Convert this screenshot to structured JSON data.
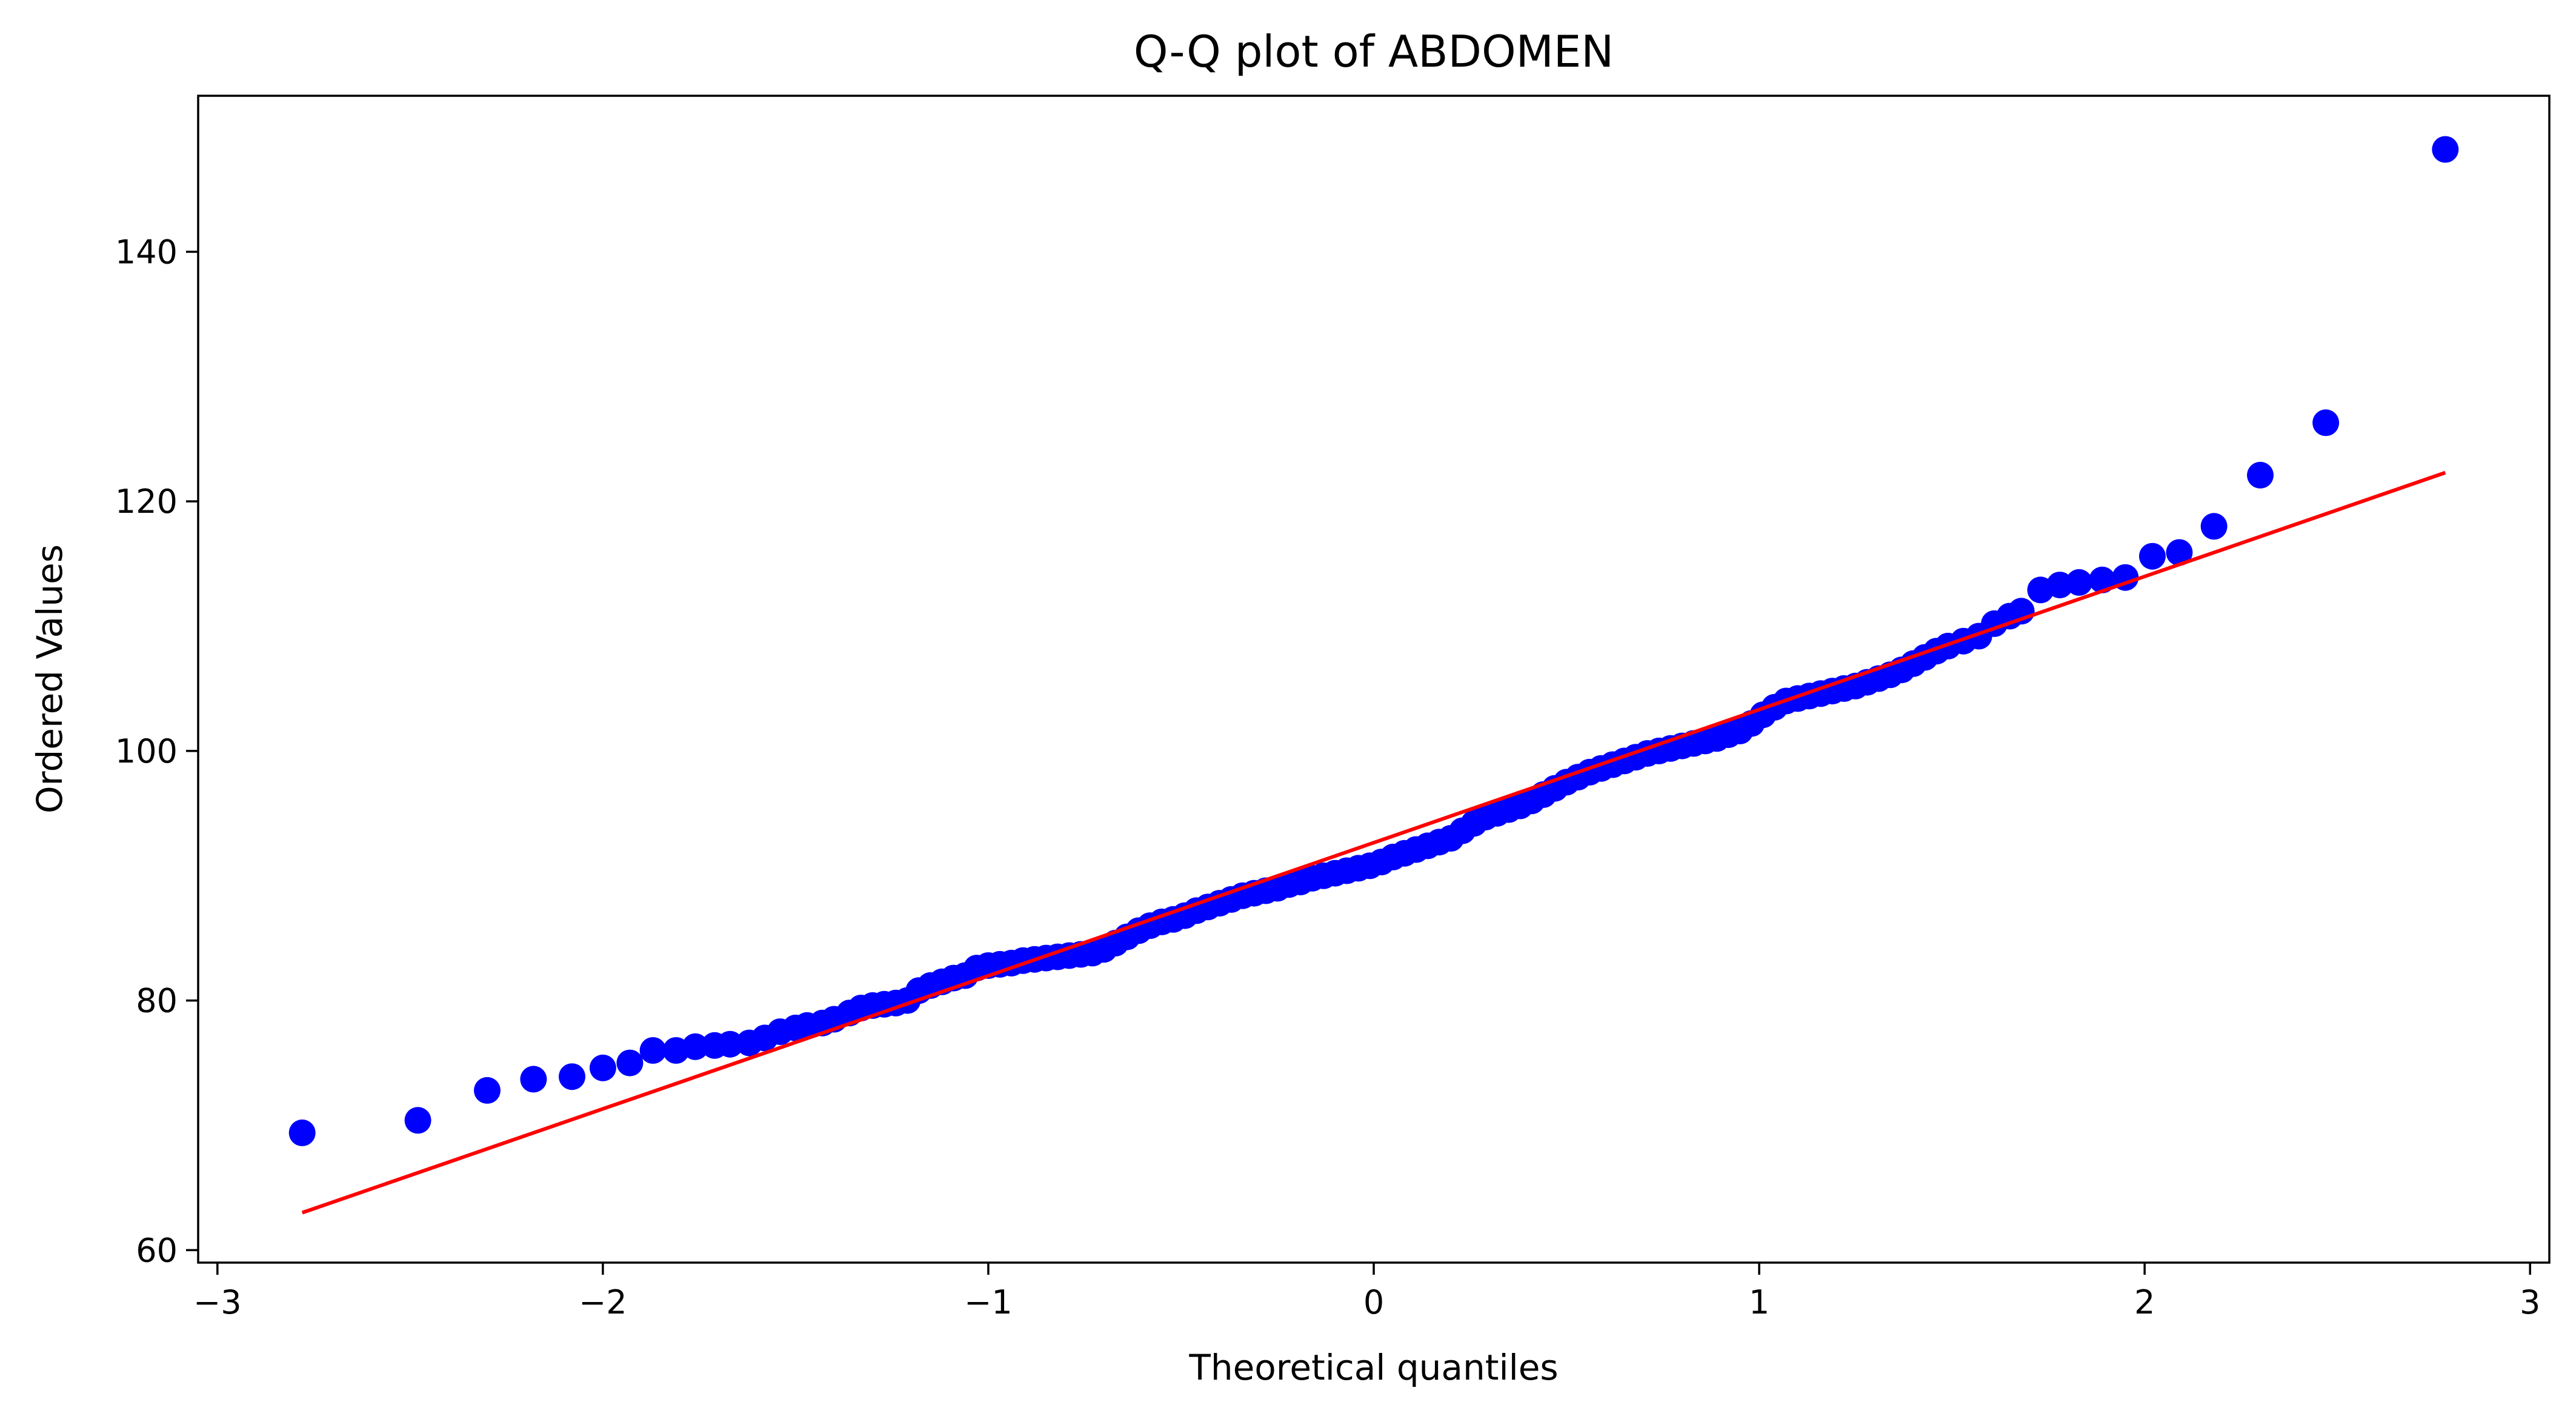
{
  "chart_data": {
    "type": "scatter",
    "title": "Q-Q plot of ABDOMEN",
    "xlabel": "Theoretical quantiles",
    "ylabel": "Ordered Values",
    "xlim": [
      -3.05,
      3.05
    ],
    "ylim": [
      59,
      152.5
    ],
    "xticks": [
      -3,
      -2,
      -1,
      0,
      1,
      2,
      3
    ],
    "xtick_labels": [
      "−3",
      "−2",
      "−1",
      "0",
      "1",
      "2",
      "3"
    ],
    "yticks": [
      60,
      80,
      100,
      120,
      140
    ],
    "ytick_labels": [
      "60",
      "80",
      "100",
      "120",
      "140"
    ],
    "grid": false,
    "marker_color": "#0000ff",
    "fit_line_color": "#ff0000",
    "points": [
      [
        -2.78,
        69.4
      ],
      [
        -2.48,
        70.4
      ],
      [
        -2.3,
        72.8
      ],
      [
        -2.18,
        73.7
      ],
      [
        -2.08,
        73.9
      ],
      [
        -2.0,
        74.6
      ],
      [
        -1.93,
        75.0
      ],
      [
        -1.87,
        76.0
      ],
      [
        -1.81,
        76.0
      ],
      [
        -1.76,
        76.3
      ],
      [
        -1.71,
        76.4
      ],
      [
        -1.67,
        76.5
      ],
      [
        -1.62,
        76.6
      ],
      [
        -1.58,
        77.0
      ],
      [
        -1.54,
        77.5
      ],
      [
        -1.5,
        77.8
      ],
      [
        -1.47,
        78.0
      ],
      [
        -1.43,
        78.2
      ],
      [
        -1.4,
        78.5
      ],
      [
        -1.36,
        79.0
      ],
      [
        -1.33,
        79.4
      ],
      [
        -1.3,
        79.6
      ],
      [
        -1.27,
        79.7
      ],
      [
        -1.24,
        79.8
      ],
      [
        -1.21,
        80.0
      ],
      [
        -1.18,
        80.8
      ],
      [
        -1.15,
        81.2
      ],
      [
        -1.12,
        81.5
      ],
      [
        -1.09,
        81.8
      ],
      [
        -1.06,
        82.0
      ],
      [
        -1.03,
        82.6
      ],
      [
        -1.0,
        82.8
      ],
      [
        -0.97,
        82.9
      ],
      [
        -0.94,
        83.0
      ],
      [
        -0.91,
        83.2
      ],
      [
        -0.88,
        83.3
      ],
      [
        -0.85,
        83.4
      ],
      [
        -0.82,
        83.5
      ],
      [
        -0.79,
        83.6
      ],
      [
        -0.76,
        83.7
      ],
      [
        -0.73,
        83.8
      ],
      [
        -0.7,
        84.1
      ],
      [
        -0.67,
        84.6
      ],
      [
        -0.64,
        85.1
      ],
      [
        -0.61,
        85.6
      ],
      [
        -0.58,
        86.0
      ],
      [
        -0.55,
        86.3
      ],
      [
        -0.52,
        86.5
      ],
      [
        -0.49,
        86.8
      ],
      [
        -0.46,
        87.2
      ],
      [
        -0.43,
        87.5
      ],
      [
        -0.4,
        87.8
      ],
      [
        -0.37,
        88.1
      ],
      [
        -0.34,
        88.4
      ],
      [
        -0.31,
        88.6
      ],
      [
        -0.28,
        88.8
      ],
      [
        -0.25,
        89.0
      ],
      [
        -0.22,
        89.3
      ],
      [
        -0.19,
        89.5
      ],
      [
        -0.16,
        89.8
      ],
      [
        -0.13,
        90.0
      ],
      [
        -0.1,
        90.2
      ],
      [
        -0.07,
        90.4
      ],
      [
        -0.04,
        90.6
      ],
      [
        -0.01,
        90.8
      ],
      [
        0.02,
        91.1
      ],
      [
        0.05,
        91.5
      ],
      [
        0.08,
        91.8
      ],
      [
        0.11,
        92.1
      ],
      [
        0.14,
        92.4
      ],
      [
        0.17,
        92.7
      ],
      [
        0.2,
        93.0
      ],
      [
        0.23,
        93.6
      ],
      [
        0.26,
        94.2
      ],
      [
        0.29,
        94.7
      ],
      [
        0.32,
        95.0
      ],
      [
        0.35,
        95.3
      ],
      [
        0.38,
        95.6
      ],
      [
        0.41,
        96.0
      ],
      [
        0.44,
        96.5
      ],
      [
        0.47,
        97.0
      ],
      [
        0.5,
        97.5
      ],
      [
        0.53,
        97.9
      ],
      [
        0.56,
        98.3
      ],
      [
        0.59,
        98.6
      ],
      [
        0.62,
        98.9
      ],
      [
        0.65,
        99.2
      ],
      [
        0.68,
        99.5
      ],
      [
        0.71,
        99.8
      ],
      [
        0.74,
        100.0
      ],
      [
        0.77,
        100.2
      ],
      [
        0.8,
        100.4
      ],
      [
        0.83,
        100.6
      ],
      [
        0.86,
        100.8
      ],
      [
        0.89,
        101.0
      ],
      [
        0.92,
        101.3
      ],
      [
        0.95,
        101.6
      ],
      [
        0.98,
        102.2
      ],
      [
        1.01,
        102.9
      ],
      [
        1.04,
        103.5
      ],
      [
        1.07,
        104.0
      ],
      [
        1.1,
        104.2
      ],
      [
        1.13,
        104.4
      ],
      [
        1.16,
        104.6
      ],
      [
        1.19,
        104.8
      ],
      [
        1.22,
        105.0
      ],
      [
        1.25,
        105.2
      ],
      [
        1.28,
        105.5
      ],
      [
        1.31,
        105.8
      ],
      [
        1.34,
        106.1
      ],
      [
        1.37,
        106.5
      ],
      [
        1.4,
        107.0
      ],
      [
        1.43,
        107.5
      ],
      [
        1.46,
        108.0
      ],
      [
        1.49,
        108.4
      ],
      [
        1.53,
        108.8
      ],
      [
        1.57,
        109.2
      ],
      [
        1.61,
        110.2
      ],
      [
        1.65,
        110.8
      ],
      [
        1.68,
        111.2
      ],
      [
        1.73,
        112.9
      ],
      [
        1.78,
        113.3
      ],
      [
        1.83,
        113.5
      ],
      [
        1.89,
        113.7
      ],
      [
        1.95,
        113.9
      ],
      [
        2.02,
        115.6
      ],
      [
        2.09,
        115.9
      ],
      [
        2.18,
        118.0
      ],
      [
        2.3,
        122.1
      ],
      [
        2.47,
        126.3
      ],
      [
        2.78,
        148.2
      ]
    ],
    "fit_line": {
      "x": [
        -2.78,
        2.78
      ],
      "y": [
        63.0,
        122.3
      ]
    }
  }
}
